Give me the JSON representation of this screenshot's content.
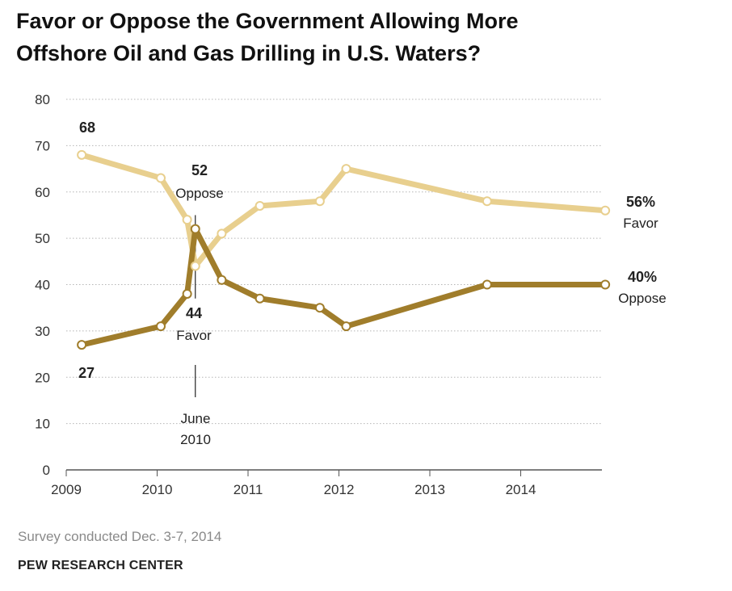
{
  "title_line1": "Favor or Oppose the Government Allowing More",
  "title_line2": "Offshore Oil and Gas Drilling in U.S. Waters?",
  "note": "Survey conducted Dec. 3-7, 2014",
  "source": "PEW RESEARCH CENTER",
  "chart_data": {
    "type": "line",
    "title": "Favor or Oppose the Government Allowing More Offshore Oil and Gas Drilling in U.S. Waters?",
    "xlabel": "",
    "ylabel": "",
    "xlim": [
      2009,
      2015.2
    ],
    "ylim": [
      0,
      80
    ],
    "x_ticks": [
      2009,
      2010,
      2011,
      2012,
      2013,
      2014
    ],
    "y_ticks": [
      0,
      10,
      20,
      30,
      40,
      50,
      60,
      70,
      80
    ],
    "grid": true,
    "series": [
      {
        "name": "Favor",
        "color": "#e8cf8e",
        "x": [
          2009.17,
          2010.04,
          2010.33,
          2010.42,
          2010.71,
          2011.13,
          2011.79,
          2012.08,
          2013.63,
          2014.93
        ],
        "values": [
          68,
          63,
          54,
          44,
          51,
          57,
          58,
          65,
          58,
          56
        ]
      },
      {
        "name": "Oppose",
        "color": "#a07d2b",
        "x": [
          2009.17,
          2010.04,
          2010.33,
          2010.42,
          2010.71,
          2011.13,
          2011.79,
          2012.08,
          2013.63,
          2014.93
        ],
        "values": [
          27,
          31,
          38,
          52,
          41,
          37,
          35,
          31,
          40,
          40
        ]
      }
    ],
    "annotations": [
      {
        "id": "favor-start",
        "text": "68",
        "x": 2009.17,
        "y": 68
      },
      {
        "id": "oppose-start",
        "text": "27",
        "x": 2009.17,
        "y": 27
      },
      {
        "id": "oppose-peak-value",
        "text": "52",
        "x": 2010.42,
        "y": 52
      },
      {
        "id": "oppose-peak-label",
        "text": "Oppose",
        "x": 2010.42,
        "y": 52
      },
      {
        "id": "favor-low-value",
        "text": "44",
        "x": 2010.42,
        "y": 44
      },
      {
        "id": "favor-low-label",
        "text": "Favor",
        "x": 2010.42,
        "y": 44
      },
      {
        "id": "june-line1",
        "text": "June",
        "x": 2010.42,
        "y": 15
      },
      {
        "id": "june-line2",
        "text": "2010",
        "x": 2010.42,
        "y": 15
      },
      {
        "id": "favor-end-value",
        "text": "56%",
        "x": 2014.93,
        "y": 56
      },
      {
        "id": "favor-end-label",
        "text": "Favor",
        "x": 2014.93,
        "y": 56
      },
      {
        "id": "oppose-end-value",
        "text": "40%",
        "x": 2014.93,
        "y": 40
      },
      {
        "id": "oppose-end-label",
        "text": "Oppose",
        "x": 2014.93,
        "y": 40
      }
    ]
  }
}
